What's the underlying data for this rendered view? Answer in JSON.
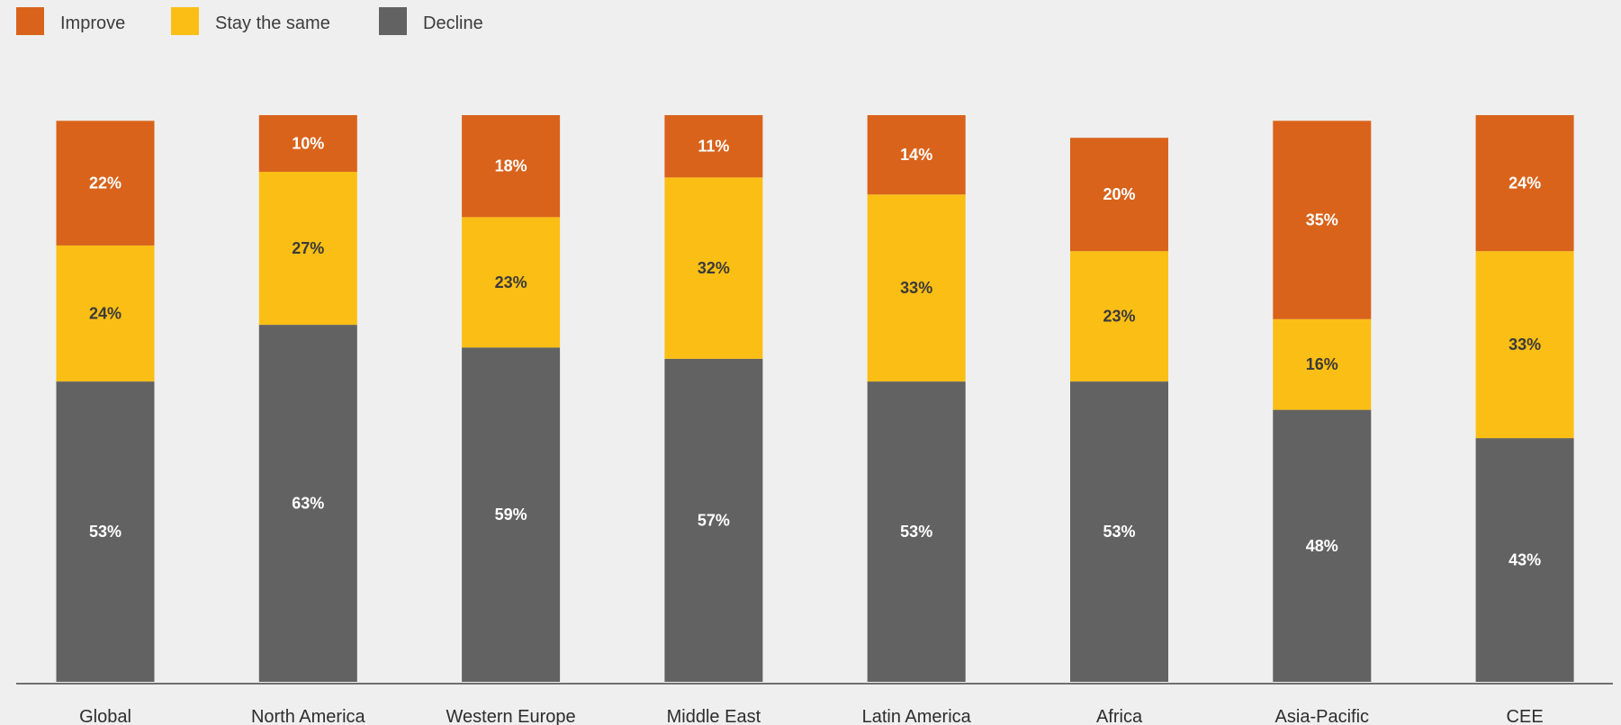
{
  "legend": [
    {
      "label": "Improve",
      "color": "#d9631b"
    },
    {
      "label": "Stay the same",
      "color": "#fbbe14"
    },
    {
      "label": "Decline",
      "color": "#626262"
    }
  ],
  "chart_data": {
    "type": "bar",
    "stacked": true,
    "categories": [
      "Global",
      "North America",
      "Western Europe",
      "Middle East",
      "Latin America",
      "Africa",
      "Asia-Pacific",
      "CEE"
    ],
    "series": [
      {
        "name": "Decline",
        "color": "#626262",
        "label_color": "#ffffff",
        "values": [
          53,
          63,
          59,
          57,
          53,
          53,
          48,
          43
        ]
      },
      {
        "name": "Stay the same",
        "color": "#fbbe14",
        "label_color": "#3a3a3a",
        "values": [
          24,
          27,
          23,
          32,
          33,
          23,
          16,
          33
        ]
      },
      {
        "name": "Improve",
        "color": "#d9631b",
        "label_color": "#ffffff",
        "values": [
          22,
          10,
          18,
          11,
          14,
          20,
          35,
          24
        ]
      }
    ],
    "value_suffix": "%",
    "title": "",
    "xlabel": "",
    "ylabel": "",
    "grid": false,
    "legend_position": "top-left"
  }
}
